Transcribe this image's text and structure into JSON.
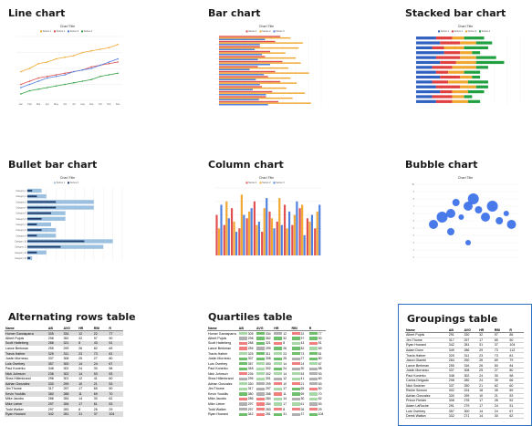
{
  "gallery": {
    "line_chart": {
      "title": "Line chart",
      "chart_title": "Chart Title",
      "chart_data": {
        "type": "line",
        "categories": [
          "Jan",
          "Feb",
          "Mar",
          "Apr",
          "May",
          "Jun",
          "Jul",
          "Aug",
          "Sep",
          "Oct",
          "Nov",
          "Dec"
        ],
        "series": [
          {
            "name": "Series 1",
            "color": "#f0a830",
            "values": [
              18,
              20,
              23,
              24,
              26,
              27,
              28,
              30,
              31,
              32,
              33,
              35
            ]
          },
          {
            "name": "Series 2",
            "color": "#e05050",
            "values": [
              10,
              12,
              14,
              15,
              16,
              17,
              18,
              19,
              21,
              22,
              23,
              24
            ]
          },
          {
            "name": "Series 3",
            "color": "#5080e0",
            "values": [
              8,
              10,
              12,
              14,
              15,
              16,
              18,
              19,
              20,
              22,
              24,
              26
            ]
          },
          {
            "name": "Series 4",
            "color": "#30a040",
            "values": [
              4,
              6,
              7,
              8,
              9,
              10,
              11,
              12,
              13,
              15,
              16,
              17
            ]
          }
        ],
        "ylim": [
          0,
          40
        ]
      }
    },
    "bar_chart": {
      "title": "Bar chart",
      "chart_title": "Chart Title",
      "chart_data": {
        "type": "bar",
        "orientation": "horizontal",
        "rows": 14,
        "series": [
          {
            "name": "Series 1",
            "color": "#e05050"
          },
          {
            "name": "Series 2",
            "color": "#f0a830"
          },
          {
            "name": "Series 3",
            "color": "#5080e0"
          }
        ]
      }
    },
    "stacked_bar_chart": {
      "title": "Stacked bar chart",
      "chart_title": "Chart Title",
      "chart_data": {
        "type": "bar",
        "stacked": true,
        "orientation": "horizontal",
        "series": [
          {
            "name": "Series 1",
            "color": "#3060c0"
          },
          {
            "name": "Series 2",
            "color": "#e04040"
          },
          {
            "name": "Series 3",
            "color": "#f0a830"
          },
          {
            "name": "Series 4",
            "color": "#20a040"
          }
        ],
        "values": [
          [
            25,
            20,
            15,
            25
          ],
          [
            30,
            25,
            20,
            20
          ],
          [
            20,
            15,
            25,
            30
          ],
          [
            35,
            20,
            15,
            10
          ],
          [
            25,
            30,
            20,
            25
          ],
          [
            30,
            20,
            25,
            35
          ],
          [
            20,
            25,
            30,
            15
          ],
          [
            25,
            15,
            20,
            20
          ],
          [
            30,
            25,
            15,
            10
          ],
          [
            20,
            20,
            25,
            25
          ],
          [
            25,
            30,
            20,
            15
          ],
          [
            30,
            15,
            20,
            20
          ],
          [
            20,
            25,
            15,
            10
          ],
          [
            25,
            20,
            20,
            15
          ]
        ]
      }
    },
    "bullet_bar_chart": {
      "title": "Bullet bar chart",
      "chart_title": "Chart Title",
      "chart_data": {
        "type": "bar",
        "orientation": "horizontal",
        "categories": [
          "Category 1",
          "Category 2",
          "Category 3",
          "Category 4",
          "Category 5",
          "Category 6",
          "Category 7",
          "Category 8",
          "Category 9",
          "Category 10",
          "Category 11",
          "Category 12",
          "Category 13"
        ],
        "series": [
          {
            "name": "Series 1",
            "color": "#9cc0e0",
            "values": [
              15,
              20,
              70,
              70,
              40,
              40,
              25,
              30,
              30,
              90,
              80,
              20,
              5
            ]
          },
          {
            "name": "Series 2",
            "color": "#1e3c6a",
            "values": [
              5,
              10,
              30,
              30,
              25,
              15,
              10,
              15,
              10,
              60,
              35,
              10,
              3
            ]
          }
        ]
      }
    },
    "column_chart": {
      "title": "Column chart",
      "chart_title": "Chart Title",
      "chart_data": {
        "type": "bar",
        "orientation": "vertical",
        "series": [
          {
            "name": "Series 1",
            "color": "#e05050"
          },
          {
            "name": "Series 2",
            "color": "#f0a830"
          },
          {
            "name": "Series 3",
            "color": "#5080e0"
          }
        ],
        "groups": 14
      }
    },
    "bubble_chart": {
      "title": "Bubble chart",
      "chart_title": "Chart Title",
      "chart_data": {
        "type": "scatter",
        "bubbles": [
          {
            "x": 1.0,
            "y": 4.5,
            "r": 5
          },
          {
            "x": 1.5,
            "y": 5.5,
            "r": 6
          },
          {
            "x": 2.0,
            "y": 6.0,
            "r": 5
          },
          {
            "x": 2.3,
            "y": 7.5,
            "r": 4
          },
          {
            "x": 2.6,
            "y": 5.5,
            "r": 3
          },
          {
            "x": 3.0,
            "y": 7.0,
            "r": 5
          },
          {
            "x": 3.3,
            "y": 8.0,
            "r": 6
          },
          {
            "x": 3.6,
            "y": 6.5,
            "r": 4
          },
          {
            "x": 4.0,
            "y": 5.5,
            "r": 5
          },
          {
            "x": 4.4,
            "y": 7.0,
            "r": 6
          },
          {
            "x": 4.8,
            "y": 5.0,
            "r": 4
          },
          {
            "x": 5.2,
            "y": 6.0,
            "r": 3
          },
          {
            "x": 5.5,
            "y": 4.5,
            "r": 5
          },
          {
            "x": 3.0,
            "y": 2.0,
            "r": 3
          },
          {
            "x": 2.0,
            "y": 3.5,
            "r": 4
          }
        ],
        "xlim": [
          0,
          6
        ],
        "ylim": [
          0,
          10
        ],
        "color": "#3a6fe8"
      }
    },
    "alternating_rows_table": {
      "title": "Alternating rows table",
      "headers": [
        "Name",
        "AB",
        "AVG",
        "HR",
        "RBI",
        "R"
      ],
      "rows": [
        [
          "Homer Garciaparra",
          "305",
          "334",
          "12",
          "22",
          "77"
        ],
        [
          "Albert Pujols",
          "298",
          "352",
          "32",
          "97",
          "90"
        ],
        [
          "Scott Hatteberg",
          "288",
          "321",
          "8",
          "43",
          "51"
        ],
        [
          "Lance Berkman",
          "255",
          "299",
          "26",
          "82",
          "69"
        ],
        [
          "Travis Hafner",
          "325",
          "311",
          "23",
          "73",
          "81"
        ],
        [
          "Justin Morneau",
          "337",
          "308",
          "25",
          "27",
          "80"
        ],
        [
          "Luis Overbey",
          "357",
          "300",
          "14",
          "24",
          "67"
        ],
        [
          "Paul Konerko",
          "348",
          "302",
          "24",
          "30",
          "58"
        ],
        [
          "Nick Johnson",
          "236",
          "302",
          "14",
          "53",
          "53"
        ],
        [
          "Shea Hillenbrand",
          "296",
          "301",
          "12",
          "41",
          "60"
        ],
        [
          "Adrian Gonzalez",
          "330",
          "299",
          "10",
          "21",
          "53"
        ],
        [
          "Jim Thome",
          "317",
          "297",
          "17",
          "65",
          "50"
        ],
        [
          "Kevin Youkilis",
          "380",
          "288",
          "11",
          "69",
          "70"
        ],
        [
          "Mike Jacobs",
          "286",
          "284",
          "14",
          "30",
          "62"
        ],
        [
          "Mike Lieber",
          "297",
          "284",
          "17",
          "61",
          "53"
        ],
        [
          "Todd Walker",
          "297",
          "283",
          "8",
          "26",
          "29"
        ],
        [
          "Ryan Howard",
          "342",
          "281",
          "31",
          "37",
          "104"
        ]
      ]
    },
    "quartiles_table": {
      "title": "Quartiles table",
      "headers": [
        "Name",
        "AB",
        "AVG",
        "HR",
        "RBI",
        "R"
      ],
      "rows": [
        [
          "Homer Garciaparra",
          "305",
          "334",
          "12",
          "22",
          "77"
        ],
        [
          "Albert Pujols",
          "298",
          "352",
          "32",
          "97",
          "90"
        ],
        [
          "Scott Hatteberg",
          "288",
          "321",
          "8",
          "43",
          "51"
        ],
        [
          "Lance Berkman",
          "255",
          "299",
          "26",
          "82",
          "69"
        ],
        [
          "Travis Hafner",
          "325",
          "311",
          "23",
          "73",
          "81"
        ],
        [
          "Justin Morneau",
          "337",
          "308",
          "25",
          "27",
          "80"
        ],
        [
          "Luis Overbey",
          "357",
          "300",
          "14",
          "24",
          "67"
        ],
        [
          "Paul Konerko",
          "348",
          "302",
          "24",
          "30",
          "58"
        ],
        [
          "Nick Johnson",
          "236",
          "302",
          "14",
          "53",
          "53"
        ],
        [
          "Shea Hillenbrand",
          "296",
          "301",
          "12",
          "41",
          "60"
        ],
        [
          "Adrian Gonzalez",
          "330",
          "299",
          "10",
          "21",
          "53"
        ],
        [
          "Jim Thome",
          "317",
          "297",
          "17",
          "65",
          "50"
        ],
        [
          "Kevin Youkilis",
          "380",
          "288",
          "11",
          "69",
          "70"
        ],
        [
          "Mike Jacobs",
          "286",
          "284",
          "14",
          "30",
          "62"
        ],
        [
          "Mike Lieber",
          "297",
          "284",
          "17",
          "61",
          "53"
        ],
        [
          "Todd Walker",
          "297",
          "283",
          "8",
          "26",
          "29"
        ],
        [
          "Ryan Howard",
          "342",
          "281",
          "31",
          "37",
          "104"
        ]
      ],
      "quartile_colors": [
        "#6fbf6f",
        "#a8d8a8",
        "#b0b0b0",
        "#f08080"
      ]
    },
    "groupings_table": {
      "title": "Groupings table",
      "headers": [
        "Name",
        "AB",
        "AVG",
        "HR",
        "RBI",
        "R"
      ],
      "rows": [
        [
          "Albert Pujols",
          "291",
          "330",
          "32",
          "97",
          "86"
        ],
        [
          "Jim Thome",
          "317",
          "297",
          "17",
          "65",
          "50"
        ],
        [
          "Ryan Howard",
          "342",
          "281",
          "31",
          "37",
          "104"
        ],
        [
          "Adam Dunn",
          "349",
          "286",
          "29",
          "73",
          "113"
        ],
        [
          "Travis Hafner",
          "325",
          "311",
          "23",
          "73",
          "81"
        ],
        [
          "Jason Giambi",
          "284",
          "290",
          "26",
          "69",
          "79"
        ],
        [
          "Lance Berkman",
          "255",
          "316",
          "26",
          "50",
          "84"
        ],
        [
          "Justin Morneau",
          "337",
          "308",
          "25",
          "27",
          "80"
        ],
        [
          "Paul Konerko",
          "348",
          "302",
          "24",
          "30",
          "58"
        ],
        [
          "Carlos Delgado",
          "298",
          "280",
          "24",
          "39",
          "66"
        ],
        [
          "Nick Swisher",
          "337",
          "250",
          "21",
          "62",
          "60"
        ],
        [
          "Richie Sexson",
          "302",
          "224",
          "18",
          "35",
          "69"
        ],
        [
          "Adrian Gonzalez",
          "330",
          "299",
          "10",
          "21",
          "53"
        ],
        [
          "Prince Fielder",
          "308",
          "278",
          "17",
          "28",
          "52"
        ],
        [
          "Adam LaRoche",
          "291",
          "279",
          "17",
          "24",
          "51"
        ],
        [
          "Luis Overbey",
          "357",
          "300",
          "14",
          "24",
          "67"
        ],
        [
          "Derek Walton",
          "332",
          "271",
          "14",
          "30",
          "62"
        ]
      ]
    }
  }
}
